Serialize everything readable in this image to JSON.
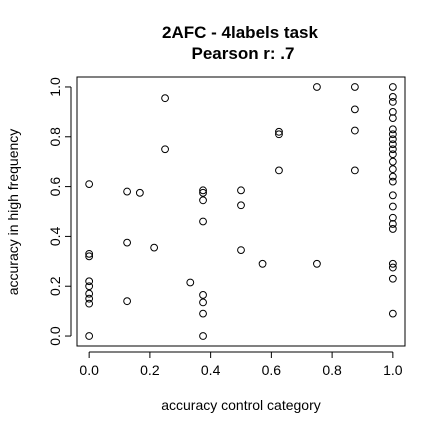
{
  "chart_data": {
    "type": "scatter",
    "title": "2AFC - 4labels task",
    "subtitle": "Pearson r: .7",
    "xlabel": "accuracy control category",
    "ylabel": "accuracy in high frequency",
    "xlim": [
      -0.04,
      1.04
    ],
    "ylim": [
      -0.04,
      1.04
    ],
    "grid": false,
    "marker": "open-circle",
    "marker_color": "#000000",
    "x_ticks": [
      {
        "value": 0.0,
        "label": "0.0"
      },
      {
        "value": 0.2,
        "label": "0.2"
      },
      {
        "value": 0.4,
        "label": "0.4"
      },
      {
        "value": 0.6,
        "label": "0.6"
      },
      {
        "value": 0.8,
        "label": "0.8"
      },
      {
        "value": 1.0,
        "label": "1.0"
      }
    ],
    "y_ticks": [
      {
        "value": 0.0,
        "label": "0.0"
      },
      {
        "value": 0.2,
        "label": "0.2"
      },
      {
        "value": 0.4,
        "label": "0.4"
      },
      {
        "value": 0.6,
        "label": "0.6"
      },
      {
        "value": 0.8,
        "label": "0.8"
      },
      {
        "value": 1.0,
        "label": "1.0"
      }
    ],
    "points": [
      {
        "x": 0.0,
        "y": 0.61
      },
      {
        "x": 0.0,
        "y": 0.33
      },
      {
        "x": 0.0,
        "y": 0.32
      },
      {
        "x": 0.0,
        "y": 0.22
      },
      {
        "x": 0.0,
        "y": 0.2
      },
      {
        "x": 0.0,
        "y": 0.17
      },
      {
        "x": 0.0,
        "y": 0.15
      },
      {
        "x": 0.0,
        "y": 0.13
      },
      {
        "x": 0.0,
        "y": 0.0
      },
      {
        "x": 0.125,
        "y": 0.58
      },
      {
        "x": 0.125,
        "y": 0.375
      },
      {
        "x": 0.125,
        "y": 0.14
      },
      {
        "x": 0.167,
        "y": 0.575
      },
      {
        "x": 0.214,
        "y": 0.355
      },
      {
        "x": 0.25,
        "y": 0.955
      },
      {
        "x": 0.25,
        "y": 0.75
      },
      {
        "x": 0.333,
        "y": 0.215
      },
      {
        "x": 0.375,
        "y": 0.585
      },
      {
        "x": 0.375,
        "y": 0.575
      },
      {
        "x": 0.375,
        "y": 0.545
      },
      {
        "x": 0.375,
        "y": 0.46
      },
      {
        "x": 0.375,
        "y": 0.165
      },
      {
        "x": 0.375,
        "y": 0.135
      },
      {
        "x": 0.375,
        "y": 0.09
      },
      {
        "x": 0.375,
        "y": 0.0
      },
      {
        "x": 0.5,
        "y": 0.585
      },
      {
        "x": 0.5,
        "y": 0.525
      },
      {
        "x": 0.5,
        "y": 0.345
      },
      {
        "x": 0.571,
        "y": 0.29
      },
      {
        "x": 0.625,
        "y": 0.82
      },
      {
        "x": 0.625,
        "y": 0.81
      },
      {
        "x": 0.625,
        "y": 0.665
      },
      {
        "x": 0.75,
        "y": 1.0
      },
      {
        "x": 0.75,
        "y": 0.29
      },
      {
        "x": 0.875,
        "y": 1.0
      },
      {
        "x": 0.875,
        "y": 0.91
      },
      {
        "x": 0.875,
        "y": 0.825
      },
      {
        "x": 0.875,
        "y": 0.665
      },
      {
        "x": 1.0,
        "y": 1.0
      },
      {
        "x": 1.0,
        "y": 0.96
      },
      {
        "x": 1.0,
        "y": 0.94
      },
      {
        "x": 1.0,
        "y": 0.9
      },
      {
        "x": 1.0,
        "y": 0.875
      },
      {
        "x": 1.0,
        "y": 0.83
      },
      {
        "x": 1.0,
        "y": 0.81
      },
      {
        "x": 1.0,
        "y": 0.79
      },
      {
        "x": 1.0,
        "y": 0.77
      },
      {
        "x": 1.0,
        "y": 0.75
      },
      {
        "x": 1.0,
        "y": 0.73
      },
      {
        "x": 1.0,
        "y": 0.7
      },
      {
        "x": 1.0,
        "y": 0.67
      },
      {
        "x": 1.0,
        "y": 0.64
      },
      {
        "x": 1.0,
        "y": 0.62
      },
      {
        "x": 1.0,
        "y": 0.565
      },
      {
        "x": 1.0,
        "y": 0.52
      },
      {
        "x": 1.0,
        "y": 0.475
      },
      {
        "x": 1.0,
        "y": 0.45
      },
      {
        "x": 1.0,
        "y": 0.43
      },
      {
        "x": 1.0,
        "y": 0.29
      },
      {
        "x": 1.0,
        "y": 0.275
      },
      {
        "x": 1.0,
        "y": 0.23
      },
      {
        "x": 1.0,
        "y": 0.09
      }
    ]
  }
}
